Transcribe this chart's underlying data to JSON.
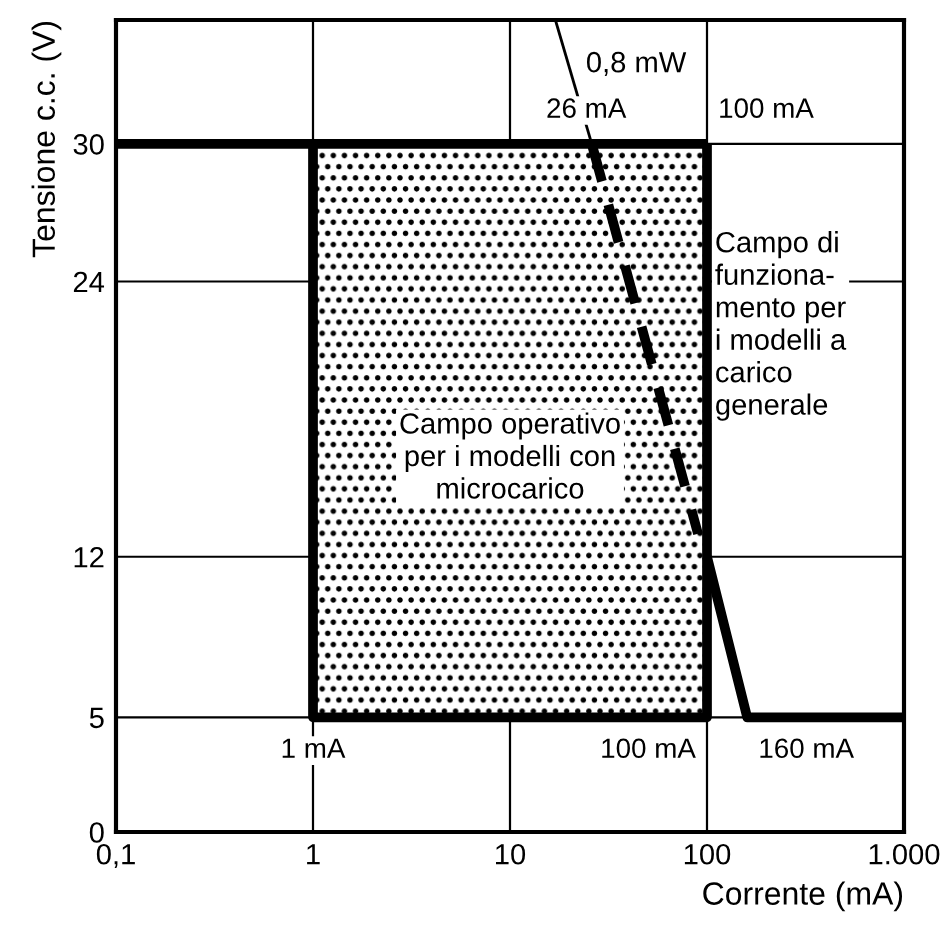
{
  "chart_data": {
    "type": "line",
    "xlabel": "Corrente (mA)",
    "ylabel": "Tensione c.c. (V)",
    "log": "x",
    "xlim": [
      0.1,
      1000
    ],
    "xticks": [
      {
        "value": 0.1,
        "label": "0,1"
      },
      1,
      10,
      100,
      {
        "value": 1000,
        "label": "1.000"
      }
    ],
    "ylim": [
      0,
      35.4
    ],
    "yticks": [
      0,
      5,
      12,
      24,
      30
    ],
    "grid": true,
    "legend": false,
    "marker": "none",
    "series": [
      {
        "color": "#000000",
        "x": [
          0.1,
          1,
          100
        ],
        "values": [
          30,
          30,
          30
        ],
        "lower": [
          null,
          5,
          5
        ],
        "upper": [
          null,
          30,
          30
        ]
      },
      {
        "color": "#000000",
        "x": [
          1,
          1,
          100,
          100
        ],
        "values": [
          30,
          5,
          5,
          30
        ]
      },
      {
        "color": "#000000",
        "x": [
          100,
          160,
          1000
        ],
        "values": [
          12,
          5,
          5
        ]
      },
      {
        "color": "#000000",
        "x": [
          26,
          90
        ],
        "values": [
          30,
          13
        ],
        "line_style": "dashed"
      },
      {
        "color": "#000000",
        "x": [
          17,
          26
        ],
        "values": [
          35.4,
          30
        ]
      }
    ],
    "annotations": [
      "0,8 mW",
      {
        "text": "26 mA",
        "x": 26,
        "y": 30
      },
      {
        "text": "100 mA",
        "x": 100,
        "y": 30
      },
      {
        "text": "1 mA",
        "x": 1,
        "y": 5
      },
      {
        "text": "100 mA",
        "x": 100,
        "y": 5
      },
      {
        "text": "160 mA",
        "x": 160,
        "y": 5
      },
      "Campo operativo\nper i modelli con\nmicrocarico",
      "Campo di\nfunziona-\nmento per\ni modelli a\ncarico\ngenerale"
    ]
  }
}
